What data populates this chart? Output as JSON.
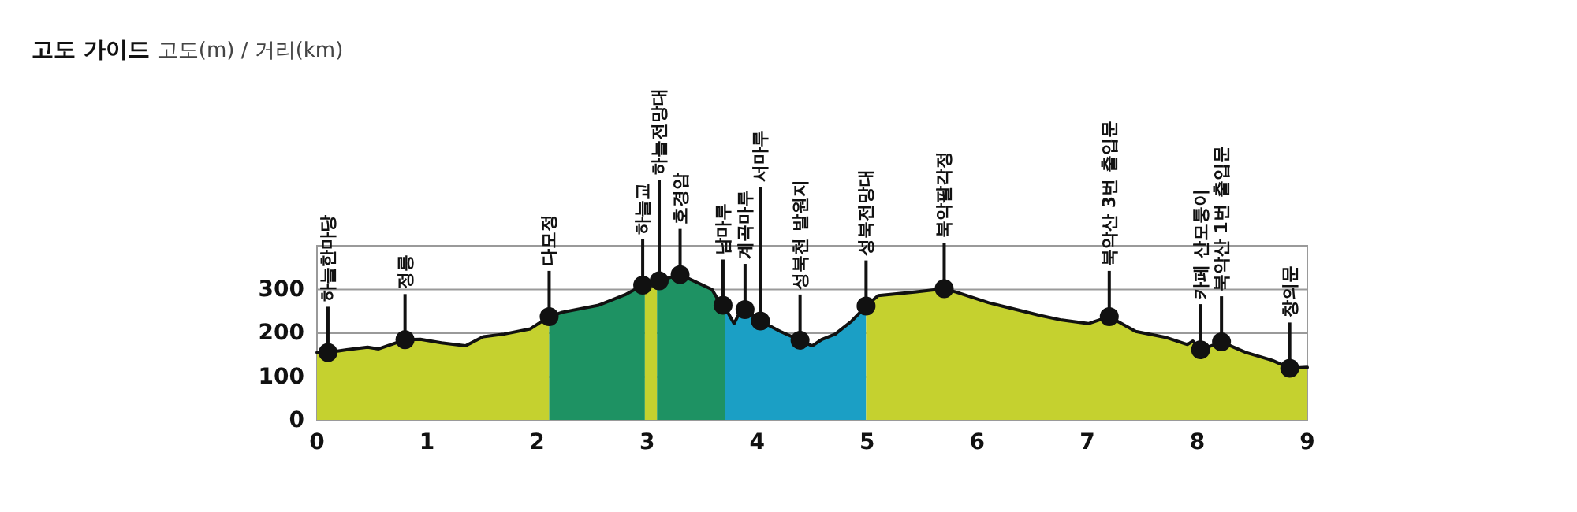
{
  "chart_data": {
    "type": "area",
    "title": "고도 가이드",
    "subtitle": "고도(m) / 거리(km)",
    "xlim": [
      0,
      9
    ],
    "xticks": [
      0,
      1,
      2,
      3,
      4,
      5,
      6,
      7,
      8,
      9
    ],
    "ylim": [
      0,
      400
    ],
    "yticks": [
      0,
      100,
      200,
      300,
      {
        "value": 400,
        "label": null
      }
    ],
    "grid": "y",
    "series": [
      {
        "color": "#c5d12f",
        "x": [
          0,
          0.1,
          0.27,
          0.46,
          0.56,
          0.8,
          0.94,
          1.13,
          1.35,
          1.51,
          1.7,
          1.94,
          2.11
        ],
        "values": [
          156,
          156,
          162,
          168,
          164,
          185,
          186,
          178,
          171,
          192,
          198,
          210,
          238
        ]
      },
      {
        "color": "#1e9263",
        "x": [
          2.11,
          2.23,
          2.56,
          2.8,
          2.96,
          2.98
        ],
        "values": [
          238,
          248,
          264,
          288,
          310,
          312
        ]
      },
      {
        "color": "#c5d12f",
        "x": [
          2.98,
          3.09
        ],
        "values": [
          312,
          320
        ]
      },
      {
        "color": "#1e9263",
        "x": [
          3.09,
          3.11,
          3.3,
          3.59,
          3.66,
          3.69,
          3.71
        ],
        "values": [
          320,
          320,
          334,
          300,
          270,
          264,
          258
        ]
      },
      {
        "color": "#1b9fc5",
        "x": [
          3.71,
          3.79,
          3.85,
          3.89,
          4.03,
          4.21,
          4.39,
          4.5,
          4.59,
          4.71,
          4.86,
          4.99
        ],
        "values": [
          258,
          222,
          252,
          254,
          228,
          204,
          184,
          171,
          186,
          198,
          228,
          262
        ]
      },
      {
        "color": "#c5d12f",
        "x": [
          4.99,
          5.1,
          5.43,
          5.7,
          5.81,
          6.1,
          6.29,
          6.58,
          6.77,
          7.01,
          7.2,
          7.44,
          7.72,
          7.91,
          7.96,
          8.03,
          8.22,
          8.44,
          8.68,
          8.84,
          9
        ],
        "values": [
          262,
          286,
          294,
          302,
          294,
          270,
          258,
          240,
          230,
          222,
          238,
          204,
          190,
          174,
          182,
          162,
          180,
          156,
          138,
          120,
          122
        ]
      }
    ],
    "annotations": [
      {
        "text": "하늘한마당",
        "x": 0.1,
        "y": 156
      },
      {
        "text": "정릉",
        "x": 0.8,
        "y": 185
      },
      {
        "text": "다모정",
        "x": 2.11,
        "y": 238
      },
      {
        "text": "하늘교",
        "x": 2.96,
        "y": 310
      },
      {
        "text": "하늘전망대",
        "x": 3.11,
        "y": 320
      },
      {
        "text": "호경암",
        "x": 3.3,
        "y": 334
      },
      {
        "text": "남마루",
        "x": 3.69,
        "y": 264
      },
      {
        "text": "계곡마루",
        "x": 3.89,
        "y": 254
      },
      {
        "text": "서마루",
        "x": 4.03,
        "y": 228
      },
      {
        "text": "성북천 발원지",
        "x": 4.39,
        "y": 184
      },
      {
        "text": "성북전망대",
        "x": 4.99,
        "y": 262
      },
      {
        "text": "북악팔각정",
        "x": 5.7,
        "y": 302
      },
      {
        "text": "북악산 3번 출입문",
        "x": 7.2,
        "y": 238
      },
      {
        "text": "카페 산모퉁이",
        "x": 8.03,
        "y": 162
      },
      {
        "text": "북악산 1번 출입문",
        "x": 8.22,
        "y": 180
      },
      {
        "text": "창의문",
        "x": 8.84,
        "y": 120
      }
    ]
  }
}
